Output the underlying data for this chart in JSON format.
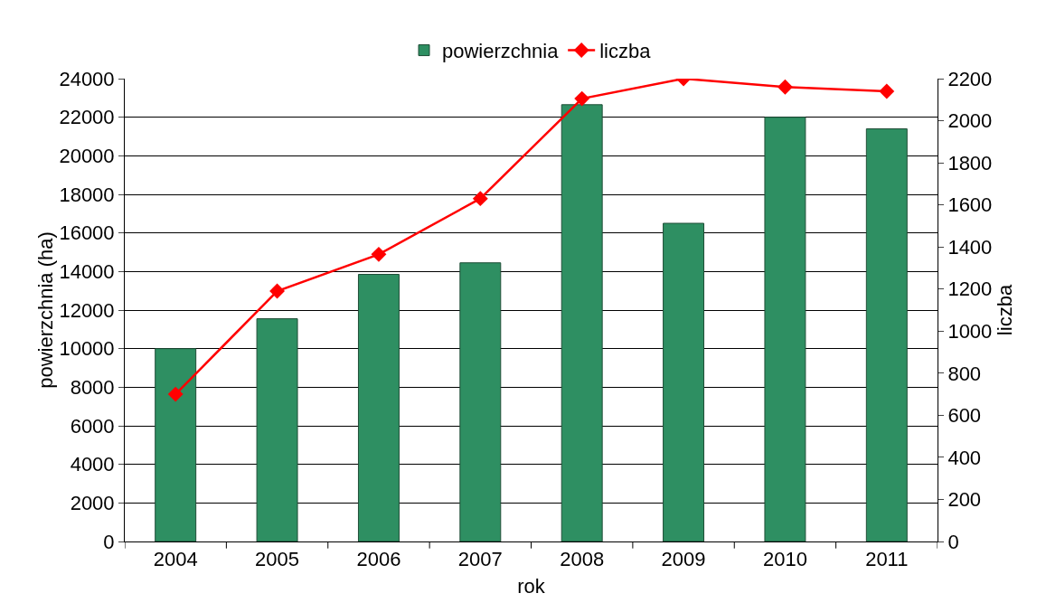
{
  "chart_data": {
    "type": "bar",
    "xlabel": "rok",
    "ylabel": "powierzchnia (ha)",
    "y2label": "liczba",
    "categories": [
      "2004",
      "2005",
      "2006",
      "2007",
      "2008",
      "2009",
      "2010",
      "2011"
    ],
    "series": [
      {
        "name": "powierzchnia",
        "color": "#2e8f62",
        "values": [
          10000,
          11550,
          13850,
          14450,
          22650,
          16500,
          22000,
          21400
        ]
      },
      {
        "name": "liczba",
        "type": "line",
        "axis": "y2",
        "color": "#ff0000",
        "values": [
          700,
          1190,
          1365,
          1630,
          2105,
          2200,
          2160,
          2140
        ]
      }
    ],
    "ylim": [
      0,
      24000
    ],
    "yticks": [
      0,
      2000,
      4000,
      6000,
      8000,
      10000,
      12000,
      14000,
      16000,
      18000,
      20000,
      22000,
      24000
    ],
    "y2lim": [
      0,
      2200
    ],
    "y2ticks": [
      0,
      200,
      400,
      600,
      800,
      1000,
      1200,
      1400,
      1600,
      1800,
      2000,
      2200
    ],
    "grid": "y",
    "legend": "top",
    "marker": "diamond",
    "line_style": "solid"
  }
}
